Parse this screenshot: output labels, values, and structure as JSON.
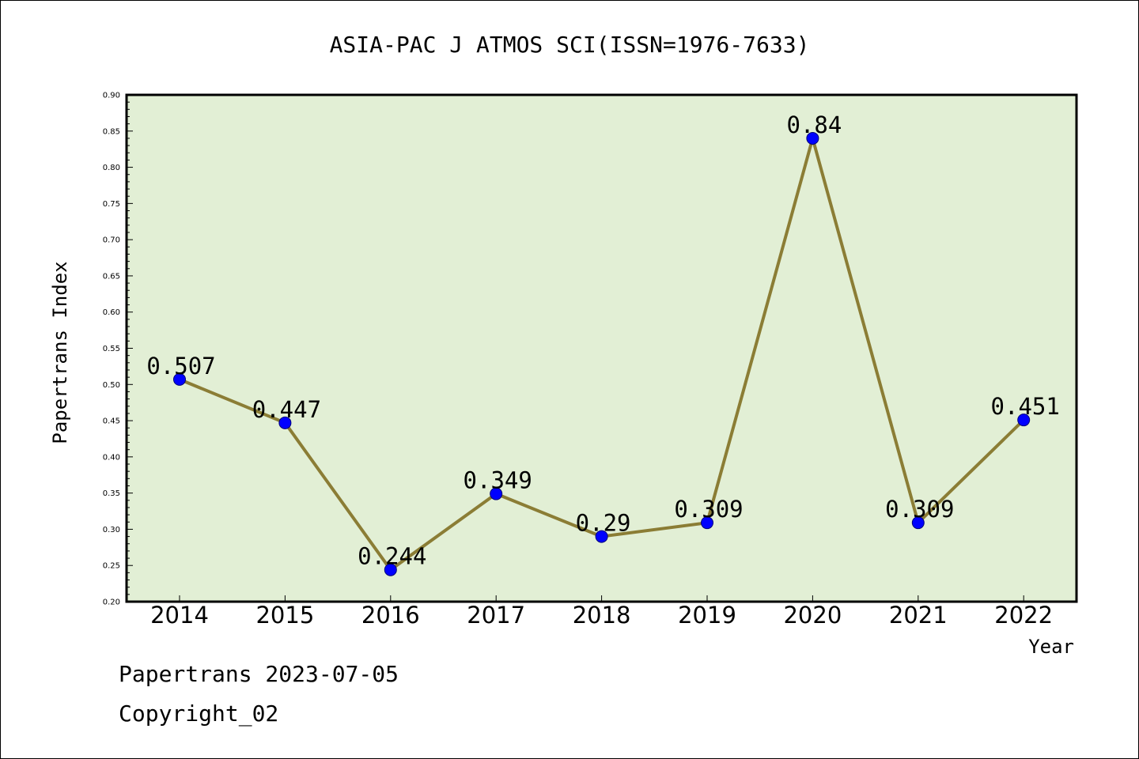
{
  "chart_data": {
    "type": "line",
    "title": "ASIA-PAC J ATMOS SCI(ISSN=1976-7633)",
    "xlabel": "Year",
    "ylabel": "Papertrans Index",
    "categories": [
      "2014",
      "2015",
      "2016",
      "2017",
      "2018",
      "2019",
      "2020",
      "2021",
      "2022"
    ],
    "series": [
      {
        "values": [
          0.507,
          0.447,
          0.244,
          0.349,
          0.29,
          0.309,
          0.84,
          0.309,
          0.451
        ],
        "labels": [
          "0.507",
          "0.447",
          "0.244",
          "0.349",
          "0.29",
          "0.309",
          "0.84",
          "0.309",
          "0.451"
        ]
      }
    ],
    "ylim": [
      0.2,
      0.9
    ],
    "yticks": [
      "0.20",
      "0.25",
      "0.30",
      "0.35",
      "0.40",
      "0.45",
      "0.50",
      "0.55",
      "0.60",
      "0.65",
      "0.70",
      "0.75",
      "0.80",
      "0.85",
      "0.90"
    ],
    "grid": false,
    "colors": {
      "plot_background": "#e2efd5",
      "line": "#8b7d35",
      "marker": "#0000ff"
    }
  },
  "footer": {
    "source_line": "Papertrans 2023-07-05",
    "copyright_line": "Copyright_02"
  }
}
